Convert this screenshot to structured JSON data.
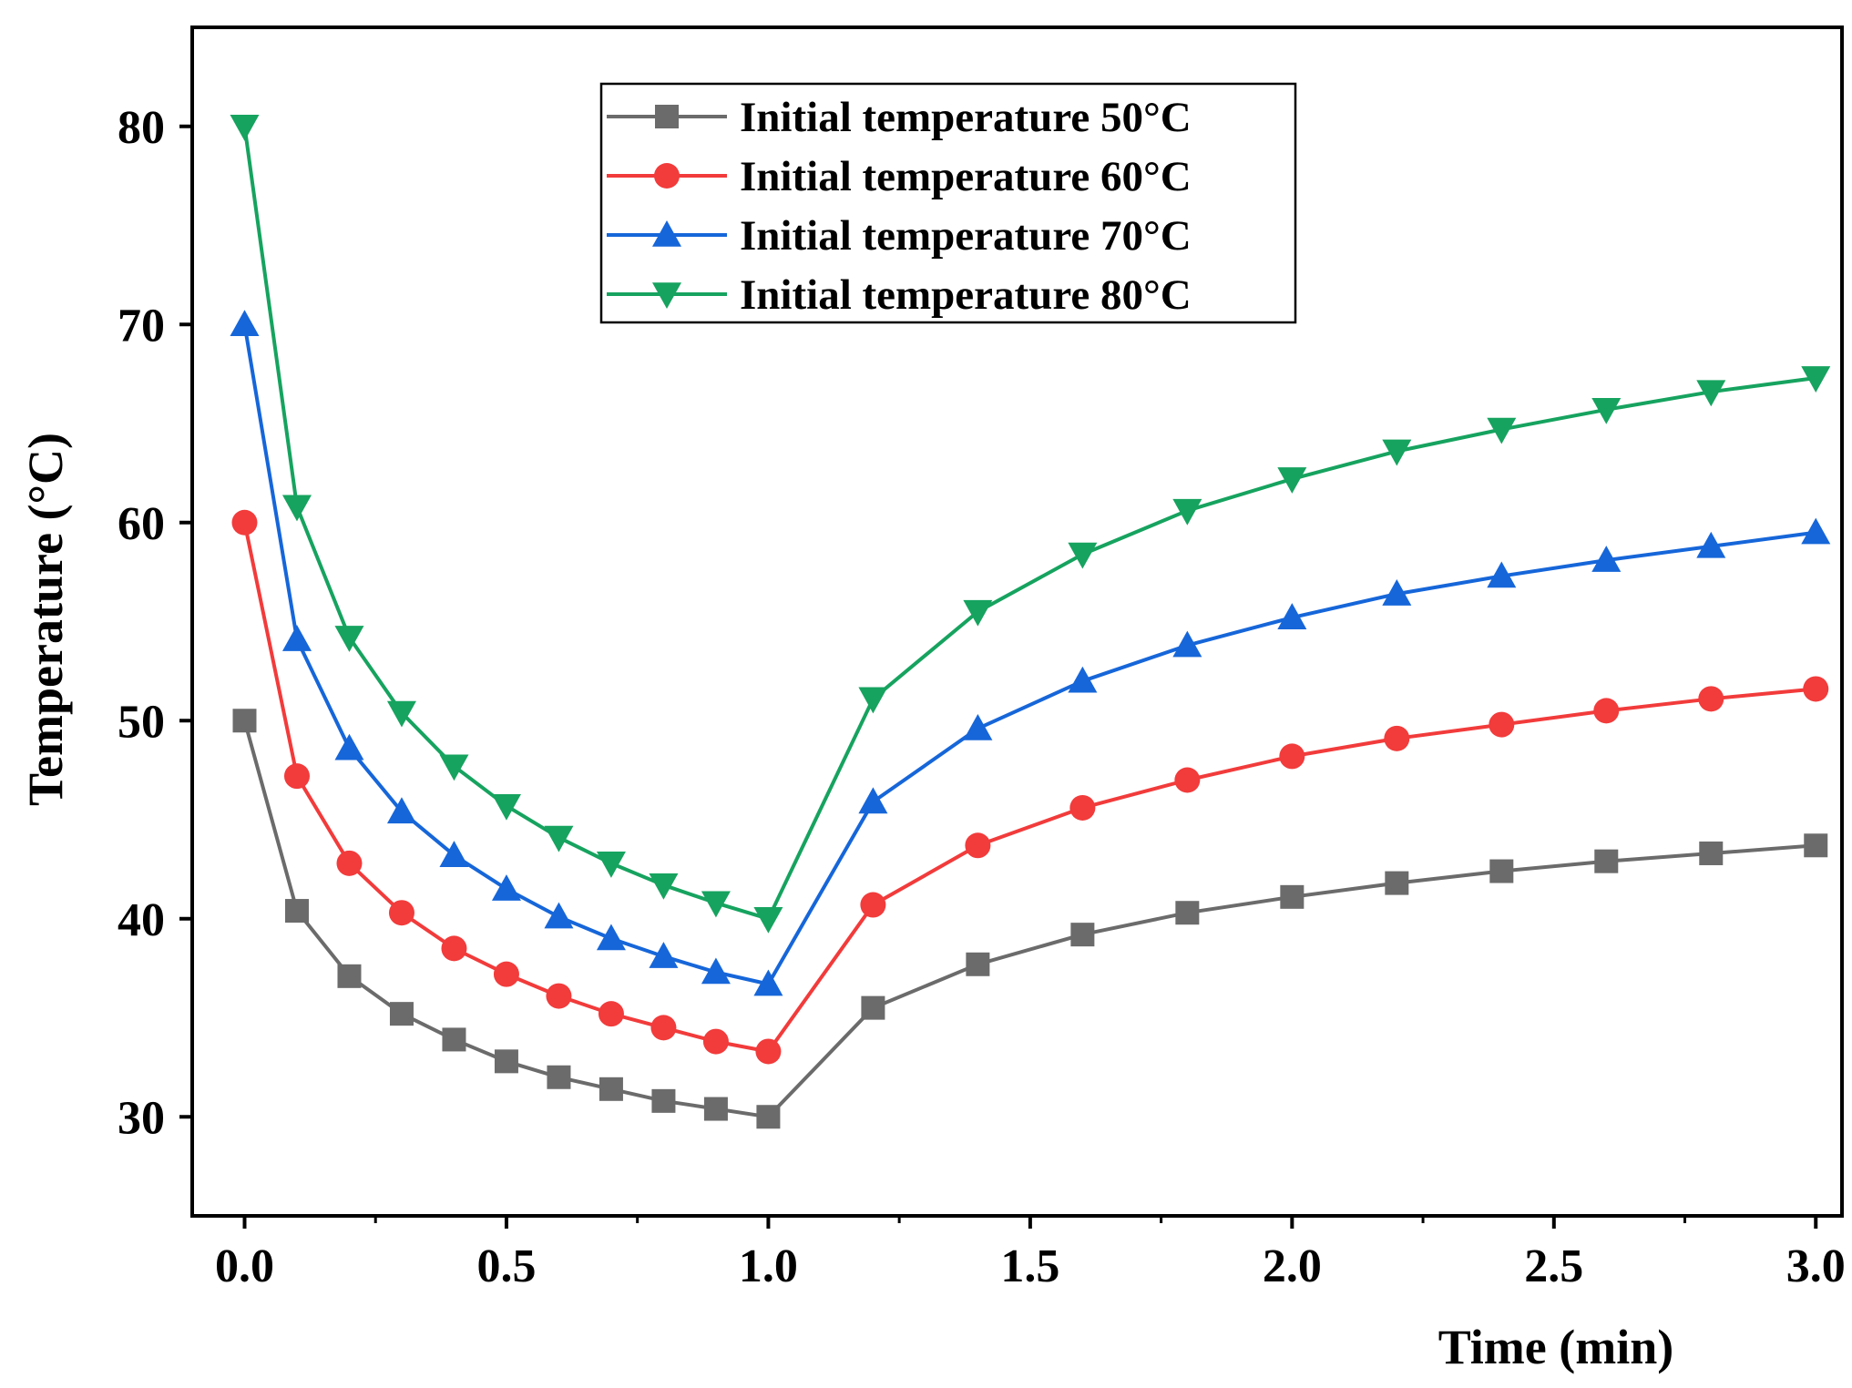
{
  "chart_data": {
    "type": "line",
    "title": "",
    "xlabel": "Time (min)",
    "ylabel": "Temperature (°C)",
    "xlim": [
      -0.1,
      3.05
    ],
    "ylim": [
      25,
      85
    ],
    "xticks": [
      0.0,
      0.5,
      1.0,
      1.5,
      2.0,
      2.5,
      3.0
    ],
    "xtick_labels": [
      "0.0",
      "0.5",
      "1.0",
      "1.5",
      "2.0",
      "2.5",
      "3.0"
    ],
    "yticks": [
      30,
      40,
      50,
      60,
      70,
      80
    ],
    "ytick_labels": [
      "30",
      "40",
      "50",
      "60",
      "70",
      "80"
    ],
    "legend_position": "top-center",
    "x": [
      0,
      0.1,
      0.2,
      0.3,
      0.4,
      0.5,
      0.6,
      0.7,
      0.8,
      0.9,
      1.0,
      1.2,
      1.4,
      1.6,
      1.8,
      2.0,
      2.2,
      2.4,
      2.6,
      2.8,
      3.0
    ],
    "series": [
      {
        "name": "Initial temperature 50°C",
        "color": "#6b6b6b",
        "marker": "square",
        "values": [
          50.0,
          40.4,
          37.1,
          35.2,
          33.9,
          32.8,
          32.0,
          31.4,
          30.8,
          30.4,
          30.0,
          35.5,
          37.7,
          39.2,
          40.3,
          41.1,
          41.8,
          42.4,
          42.9,
          43.3,
          43.7
        ]
      },
      {
        "name": "Initial temperature 60°C",
        "color": "#f23b3b",
        "marker": "circle",
        "values": [
          60.0,
          47.2,
          42.8,
          40.3,
          38.5,
          37.2,
          36.1,
          35.2,
          34.5,
          33.8,
          33.3,
          40.7,
          43.7,
          45.6,
          47.0,
          48.2,
          49.1,
          49.8,
          50.5,
          51.1,
          51.6
        ]
      },
      {
        "name": "Initial temperature 70°C",
        "color": "#1666d9",
        "marker": "triangle-up",
        "values": [
          70.0,
          54.1,
          48.6,
          45.4,
          43.2,
          41.5,
          40.1,
          39.0,
          38.1,
          37.3,
          36.7,
          45.9,
          49.6,
          52.0,
          53.8,
          55.2,
          56.4,
          57.3,
          58.1,
          58.8,
          59.5
        ]
      },
      {
        "name": "Initial temperature 80°C",
        "color": "#16a35f",
        "marker": "triangle-down",
        "values": [
          80.0,
          60.8,
          54.2,
          50.4,
          47.7,
          45.7,
          44.1,
          42.8,
          41.7,
          40.8,
          40.0,
          51.1,
          55.5,
          58.4,
          60.6,
          62.2,
          63.6,
          64.7,
          65.7,
          66.6,
          67.3
        ]
      }
    ]
  }
}
